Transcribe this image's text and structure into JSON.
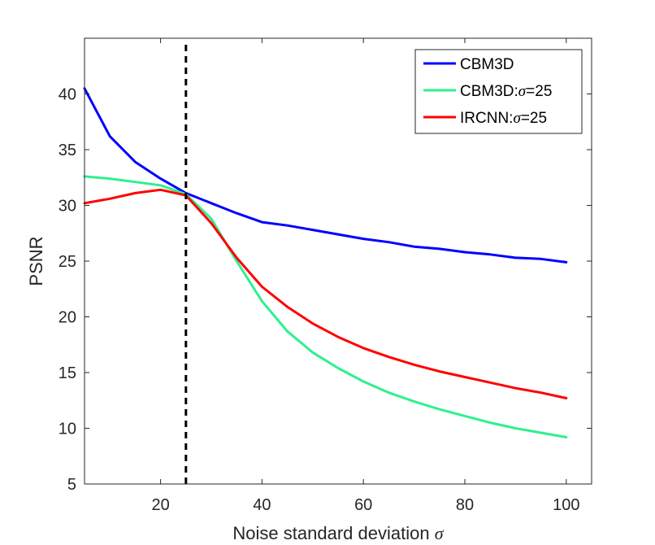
{
  "chart_data": {
    "type": "line",
    "title": "",
    "xlabel": "Noise standard deviation",
    "xlabel_symbol": "σ",
    "ylabel": "PSNR",
    "xlim": [
      5,
      105
    ],
    "ylim": [
      5,
      45
    ],
    "xticks": [
      20,
      40,
      60,
      80,
      100
    ],
    "yticks": [
      5,
      10,
      15,
      20,
      25,
      30,
      35,
      40
    ],
    "grid": false,
    "legend_position": "top-right",
    "vline": {
      "x": 25,
      "style": "dashed",
      "color": "#000000"
    },
    "x": [
      5,
      10,
      15,
      20,
      25,
      30,
      35,
      40,
      45,
      50,
      55,
      60,
      65,
      70,
      75,
      80,
      85,
      90,
      95,
      100
    ],
    "series": [
      {
        "name": "CBM3D",
        "legend_label": "CBM3D",
        "color": "#0000FF",
        "values": [
          40.5,
          36.2,
          33.9,
          32.4,
          31.1,
          30.2,
          29.3,
          28.5,
          28.2,
          27.8,
          27.4,
          27.0,
          26.7,
          26.3,
          26.1,
          25.8,
          25.6,
          25.3,
          25.2,
          24.9
        ]
      },
      {
        "name": "CBM3D:σ=25",
        "legend_prefix": "CBM3D:",
        "legend_symbol": "σ",
        "legend_suffix": "=25",
        "color": "#2EF08F",
        "values": [
          32.6,
          32.4,
          32.1,
          31.8,
          31.0,
          28.8,
          25.0,
          21.4,
          18.7,
          16.8,
          15.4,
          14.2,
          13.2,
          12.4,
          11.7,
          11.1,
          10.5,
          10.0,
          9.6,
          9.2
        ]
      },
      {
        "name": "IRCNN:σ=25",
        "legend_prefix": "IRCNN:",
        "legend_symbol": "σ",
        "legend_suffix": "=25",
        "color": "#FF0000",
        "values": [
          30.2,
          30.6,
          31.1,
          31.4,
          30.9,
          28.4,
          25.3,
          22.7,
          20.9,
          19.4,
          18.2,
          17.2,
          16.4,
          15.7,
          15.1,
          14.6,
          14.1,
          13.6,
          13.2,
          12.7
        ]
      }
    ]
  }
}
